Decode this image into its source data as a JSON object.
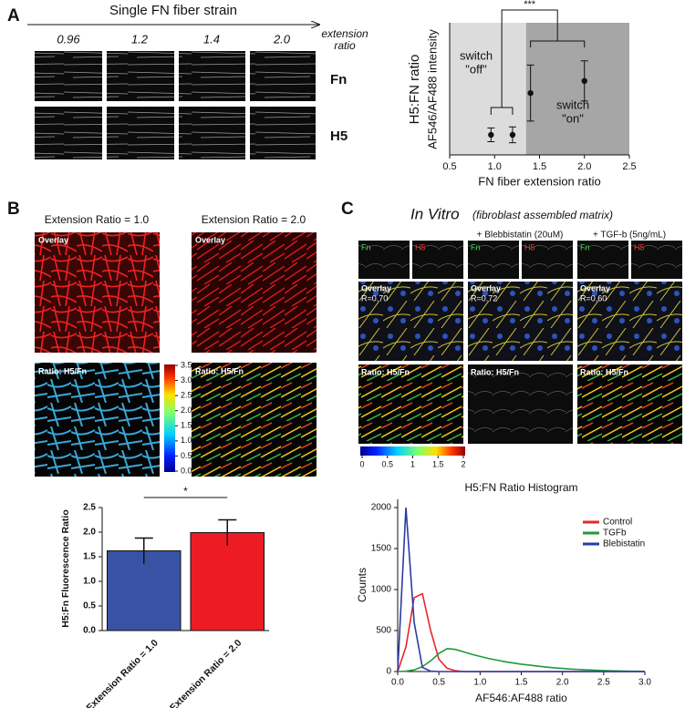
{
  "panel_labels": [
    "A",
    "B",
    "C"
  ],
  "panel_a": {
    "title": "Single FN fiber strain",
    "strains": [
      "0.96",
      "1.2",
      "1.4",
      "2.0"
    ],
    "strain_caption": [
      "extension",
      "ratio"
    ],
    "rows": [
      "Fn",
      "H5"
    ]
  },
  "panel_b": {
    "columns": [
      "Extension Ratio = 1.0",
      "Extension Ratio = 2.0"
    ],
    "image_labels": [
      "Overlay",
      "Ratio: H5/Fn"
    ],
    "colorbar_ticks": [
      {
        "value": 0,
        "label": "0.0"
      },
      0.5,
      {
        "value": 1,
        "label": "1.0"
      },
      1.5,
      {
        "value": 2,
        "label": "2.0"
      },
      2.5,
      {
        "value": 3,
        "label": "3.0"
      },
      3.5
    ]
  },
  "panel_c": {
    "title": "In Vitro",
    "subtitle": "(fibroblast assembled matrix)",
    "columns": [
      "+ Blebbistatin (20uM)",
      "+ TGF-b (5ng/mL)"
    ],
    "channels": [
      "Fn",
      "H5"
    ],
    "overlay_label": "Overlay",
    "r_values": [
      "R=0.70",
      "R=0.72",
      "R=0.60"
    ],
    "ratio_label": "Ratio: H5/Fn",
    "colorbar_ticks": [
      0,
      0.5,
      1,
      1.5,
      2
    ]
  },
  "chart_data": [
    {
      "type": "scatter",
      "ylabel": [
        "H5:FN ratio",
        "AF546/AF488 intensity"
      ],
      "xlabel": "FN fiber extension ratio",
      "x": [
        0.96,
        1.2,
        1.4,
        2.0
      ],
      "values": [
        0.38,
        0.38,
        1.17,
        1.4
      ],
      "errors": [
        0.13,
        0.15,
        0.53,
        0.38
      ],
      "color": "#111111",
      "xlim": [
        0.5,
        2.5
      ],
      "ylim": [
        0,
        2.5
      ],
      "xticks": [
        0.5,
        {
          "value": 1,
          "label": "1.0"
        },
        1.5,
        {
          "value": 2,
          "label": "2.0"
        },
        2.5
      ],
      "regions": [
        {
          "xlim": [
            0.5,
            1.35
          ],
          "color": "#dcdcdc"
        },
        {
          "xlim": [
            1.35,
            2.5
          ],
          "color": "#a6a6a6"
        }
      ],
      "annotations": {
        "off": [
          "switch",
          "\"off\""
        ],
        "on": [
          "switch",
          "\"on\""
        ],
        "significance": "***"
      }
    },
    {
      "type": "bar",
      "ylabel": "H5:Fn Fluorescence Ratio",
      "categories": [
        "Extension Ratio = 1.0",
        "Extension Ratio = 2.0"
      ],
      "values": [
        1.62,
        1.99
      ],
      "errors": [
        0.26,
        0.26
      ],
      "colors": [
        "#3953a4",
        "#ed1c24"
      ],
      "ylim": [
        0,
        2.5
      ],
      "yticks": [
        {
          "value": 0,
          "label": "0.0"
        },
        0.5,
        {
          "value": 1,
          "label": "1.0"
        },
        1.5,
        {
          "value": 2,
          "label": "2.0"
        },
        2.5
      ],
      "annotation": "*"
    },
    {
      "type": "line",
      "title": "H5:FN Ratio Histogram",
      "xlabel": "AF546:AF488 ratio",
      "ylabel": "Counts",
      "x": [
        0,
        0.1,
        0.2,
        0.3,
        0.4,
        0.5,
        0.6,
        0.7,
        0.8,
        0.9,
        1,
        1.1,
        1.2,
        1.3,
        1.4,
        1.5,
        1.6,
        1.7,
        1.8,
        1.9,
        2,
        2.1,
        2.2,
        2.3,
        2.4,
        2.5,
        2.6,
        2.7,
        2.8,
        2.9,
        3
      ],
      "series": [
        {
          "name": "Control",
          "color": "#e8262c",
          "values": [
            0,
            300,
            900,
            950,
            500,
            150,
            40,
            10,
            0,
            0,
            0,
            0,
            0,
            0,
            0,
            0,
            0,
            0,
            0,
            0,
            0,
            0,
            0,
            0,
            0,
            0,
            0,
            0,
            0,
            0,
            0
          ]
        },
        {
          "name": "TGFb",
          "color": "#1f9a3a",
          "values": [
            0,
            5,
            20,
            60,
            130,
            220,
            280,
            270,
            240,
            210,
            185,
            160,
            140,
            120,
            105,
            90,
            78,
            66,
            55,
            45,
            38,
            30,
            25,
            20,
            16,
            12,
            9,
            7,
            5,
            3,
            2
          ]
        },
        {
          "name": "Blebistatin",
          "color": "#2b3aa8",
          "values": [
            0,
            2000,
            600,
            50,
            5,
            0,
            0,
            0,
            0,
            0,
            0,
            0,
            0,
            0,
            0,
            0,
            0,
            0,
            0,
            0,
            0,
            0,
            0,
            0,
            0,
            0,
            0,
            0,
            0,
            0,
            0
          ]
        }
      ],
      "xlim": [
        0,
        3
      ],
      "ylim": [
        0,
        2100
      ],
      "xticks": [
        {
          "value": 0,
          "label": "0.0"
        },
        0.5,
        {
          "value": 1,
          "label": "1.0"
        },
        1.5,
        {
          "value": 2,
          "label": "2.0"
        },
        2.5,
        {
          "value": 3,
          "label": "3.0"
        }
      ],
      "yticks": [
        0,
        500,
        1000,
        1500,
        2000
      ],
      "legend": "upper right"
    }
  ]
}
